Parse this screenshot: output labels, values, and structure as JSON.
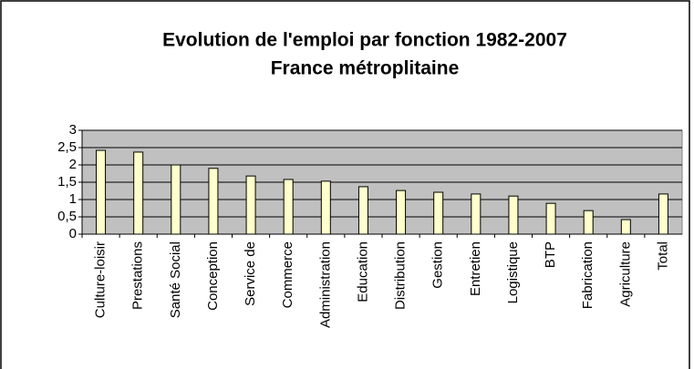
{
  "chart_data": {
    "type": "bar",
    "title": "Evolution de l'emploi par fonction 1982-2007",
    "subtitle": "France métroplitaine",
    "categories": [
      "Culture-loisir",
      "Prestations",
      "Santé Social",
      "Conception",
      "Service de",
      "Commerce",
      "Administration",
      "Education",
      "Distribution",
      "Gestion",
      "Entretien",
      "Logistique",
      "BTP",
      "Fabrication",
      "Agriculture",
      "Total"
    ],
    "values": [
      2.42,
      2.37,
      2.0,
      1.9,
      1.68,
      1.58,
      1.53,
      1.37,
      1.26,
      1.21,
      1.16,
      1.1,
      0.89,
      0.68,
      0.42,
      1.16
    ],
    "color": "#ffffcc",
    "ylim": [
      0,
      3
    ],
    "yticks": [
      0,
      {
        "value": 0.5,
        "label": "0,5"
      },
      1,
      {
        "value": 1.5,
        "label": "1,5"
      },
      2,
      {
        "value": 2.5,
        "label": "2,5"
      },
      3
    ],
    "grid": true
  }
}
